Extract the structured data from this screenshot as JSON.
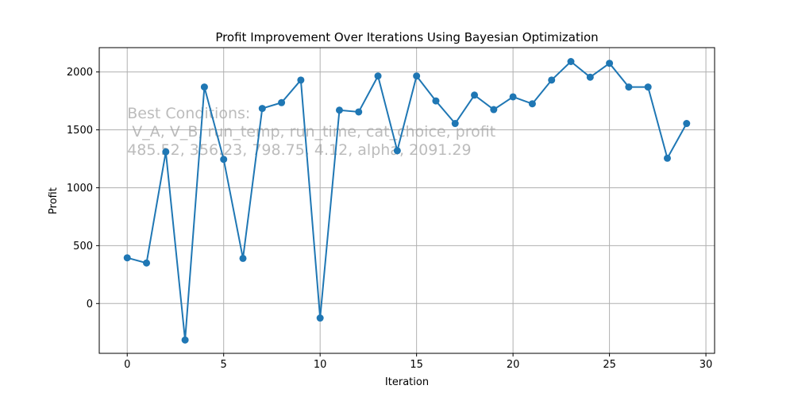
{
  "chart_data": {
    "type": "line",
    "title": "Profit Improvement Over Iterations Using Bayesian Optimization",
    "xlabel": "Iteration",
    "ylabel": "Profit",
    "xlim": [
      -1.45,
      30.45
    ],
    "ylim": [
      -430,
      2210
    ],
    "xticks": [
      0,
      5,
      10,
      15,
      20,
      25,
      30
    ],
    "yticks": [
      0,
      500,
      1000,
      1500,
      2000
    ],
    "grid": true,
    "legend": "none",
    "series": [
      {
        "color": "#1f77b4",
        "marker": "circle",
        "x": [
          0,
          1,
          2,
          3,
          4,
          5,
          6,
          7,
          8,
          9,
          10,
          11,
          12,
          13,
          14,
          15,
          16,
          17,
          18,
          19,
          20,
          21,
          22,
          23,
          24,
          25,
          26,
          27,
          28,
          29
        ],
        "y": [
          395,
          350,
          1310,
          -315,
          1870,
          1245,
          390,
          1685,
          1735,
          1930,
          -125,
          1670,
          1655,
          1965,
          1320,
          1965,
          1750,
          1555,
          1800,
          1675,
          1785,
          1725,
          1930,
          2090,
          1955,
          2075,
          1870,
          1870,
          1255,
          1555
        ]
      }
    ],
    "annotation": {
      "lines": [
        "Best Conditions:",
        " V_A, V_B, run_temp, run_time, cat_choice, profit",
        "485.52, 356.23, 798.75, 4.12, alpha, 2091.29"
      ]
    }
  }
}
